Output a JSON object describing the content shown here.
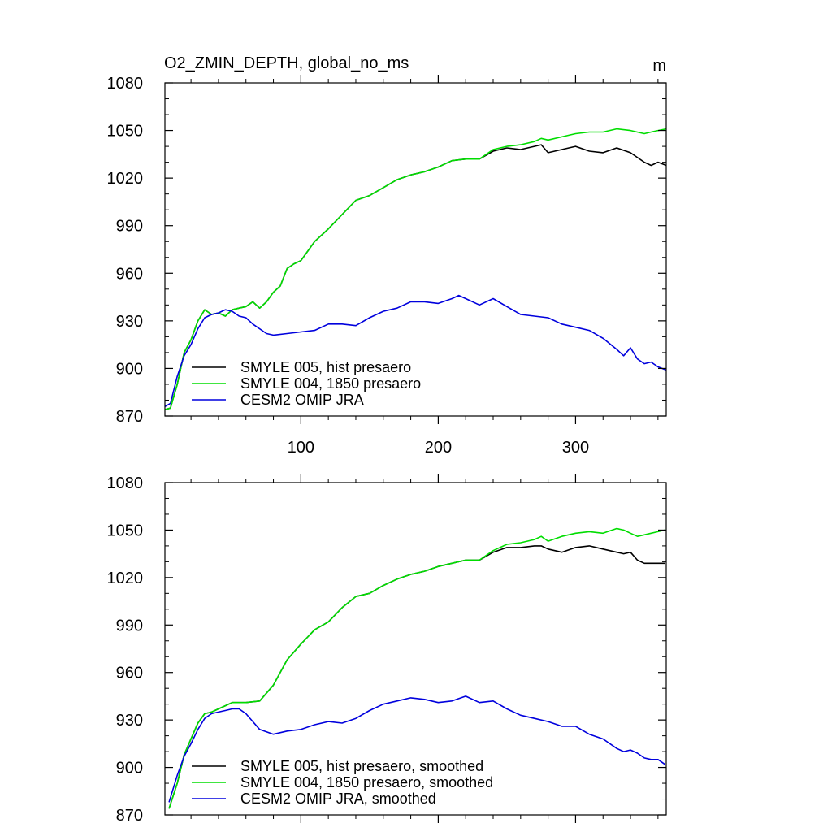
{
  "chart_data": [
    {
      "type": "line",
      "title": "O2_ZMIN_DEPTH, global_no_ms",
      "units": "m",
      "xlim": [
        1,
        366
      ],
      "ylim": [
        870,
        1080
      ],
      "xticks": [
        100,
        200,
        300
      ],
      "yticks": [
        870,
        900,
        930,
        960,
        990,
        1020,
        1050,
        1080
      ],
      "legend_position": "bottom-left",
      "series": [
        {
          "name": "SMYLE 005, hist presaero",
          "color": "#000000",
          "x": [
            1,
            5,
            10,
            15,
            20,
            25,
            30,
            35,
            40,
            45,
            50,
            55,
            60,
            65,
            70,
            75,
            80,
            85,
            90,
            95,
            100,
            110,
            120,
            130,
            140,
            150,
            160,
            170,
            180,
            190,
            200,
            210,
            220,
            230,
            240,
            250,
            260,
            270,
            275,
            280,
            290,
            300,
            310,
            320,
            330,
            340,
            350,
            355,
            360,
            366
          ],
          "y": [
            874,
            875,
            890,
            910,
            918,
            930,
            937,
            934,
            935,
            933,
            937,
            938,
            939,
            942,
            938,
            942,
            948,
            952,
            963,
            966,
            968,
            980,
            988,
            997,
            1006,
            1009,
            1014,
            1019,
            1022,
            1024,
            1027,
            1031,
            1032,
            1032,
            1037,
            1039,
            1038,
            1040,
            1041,
            1036,
            1038,
            1040,
            1037,
            1036,
            1039,
            1036,
            1030,
            1028,
            1030,
            1028
          ]
        },
        {
          "name": "SMYLE 004, 1850 presaero",
          "color": "#00dd00",
          "x": [
            1,
            5,
            10,
            15,
            20,
            25,
            30,
            35,
            40,
            45,
            50,
            55,
            60,
            65,
            70,
            75,
            80,
            85,
            90,
            95,
            100,
            110,
            120,
            130,
            140,
            150,
            160,
            170,
            180,
            190,
            200,
            210,
            220,
            230,
            240,
            250,
            260,
            270,
            275,
            280,
            290,
            300,
            310,
            320,
            330,
            340,
            350,
            355,
            360,
            366
          ],
          "y": [
            874,
            875,
            890,
            910,
            918,
            930,
            937,
            934,
            935,
            933,
            937,
            938,
            939,
            942,
            938,
            942,
            948,
            952,
            963,
            966,
            968,
            980,
            988,
            997,
            1006,
            1009,
            1014,
            1019,
            1022,
            1024,
            1027,
            1031,
            1032,
            1032,
            1038,
            1040,
            1041,
            1043,
            1045,
            1044,
            1046,
            1048,
            1049,
            1049,
            1051,
            1050,
            1048,
            1049,
            1050,
            1051
          ]
        },
        {
          "name": "CESM2 OMIP JRA",
          "color": "#0000dd",
          "x": [
            1,
            5,
            10,
            15,
            20,
            25,
            30,
            35,
            40,
            45,
            50,
            55,
            60,
            65,
            70,
            75,
            80,
            90,
            100,
            110,
            120,
            130,
            140,
            150,
            160,
            170,
            180,
            190,
            200,
            210,
            215,
            220,
            230,
            240,
            250,
            260,
            270,
            280,
            290,
            300,
            310,
            320,
            330,
            335,
            340,
            345,
            350,
            355,
            360,
            366
          ],
          "y": [
            876,
            878,
            895,
            908,
            915,
            925,
            932,
            934,
            935,
            937,
            936,
            933,
            932,
            928,
            925,
            922,
            921,
            922,
            923,
            924,
            928,
            928,
            927,
            932,
            936,
            938,
            942,
            942,
            941,
            944,
            946,
            944,
            940,
            944,
            939,
            934,
            933,
            932,
            928,
            926,
            924,
            919,
            912,
            908,
            913,
            906,
            903,
            904,
            901,
            899
          ]
        }
      ]
    },
    {
      "type": "line",
      "title": "",
      "xlim": [
        1,
        366
      ],
      "ylim": [
        870,
        1080
      ],
      "xticks": [
        100,
        200,
        300
      ],
      "yticks": [
        870,
        900,
        930,
        960,
        990,
        1020,
        1050,
        1080
      ],
      "legend_position": "bottom-left",
      "series": [
        {
          "name": "SMYLE 005, hist presaero, smoothed",
          "color": "#000000",
          "x": [
            4,
            10,
            15,
            20,
            25,
            30,
            35,
            40,
            45,
            50,
            60,
            70,
            80,
            90,
            100,
            110,
            120,
            130,
            140,
            150,
            160,
            170,
            180,
            190,
            200,
            210,
            220,
            230,
            240,
            250,
            260,
            270,
            275,
            280,
            290,
            300,
            310,
            320,
            330,
            335,
            340,
            345,
            350,
            355,
            360,
            365
          ],
          "y": [
            874,
            890,
            908,
            918,
            928,
            934,
            935,
            937,
            939,
            941,
            941,
            942,
            952,
            968,
            978,
            987,
            992,
            1001,
            1008,
            1010,
            1015,
            1019,
            1022,
            1024,
            1027,
            1029,
            1031,
            1031,
            1036,
            1039,
            1039,
            1040,
            1040,
            1038,
            1036,
            1039,
            1040,
            1038,
            1036,
            1035,
            1036,
            1031,
            1029,
            1029,
            1029,
            1029
          ]
        },
        {
          "name": "SMYLE 004, 1850 presaero, smoothed",
          "color": "#00dd00",
          "x": [
            4,
            10,
            15,
            20,
            25,
            30,
            35,
            40,
            45,
            50,
            60,
            70,
            80,
            90,
            100,
            110,
            120,
            130,
            140,
            150,
            160,
            170,
            180,
            190,
            200,
            210,
            220,
            230,
            240,
            250,
            260,
            270,
            275,
            280,
            290,
            300,
            310,
            320,
            330,
            335,
            340,
            345,
            350,
            355,
            360,
            365
          ],
          "y": [
            874,
            890,
            908,
            918,
            928,
            934,
            935,
            937,
            939,
            941,
            941,
            942,
            952,
            968,
            978,
            987,
            992,
            1001,
            1008,
            1010,
            1015,
            1019,
            1022,
            1024,
            1027,
            1029,
            1031,
            1031,
            1037,
            1041,
            1042,
            1044,
            1046,
            1043,
            1046,
            1048,
            1049,
            1048,
            1051,
            1050,
            1048,
            1046,
            1047,
            1048,
            1049,
            1050
          ]
        },
        {
          "name": "CESM2 OMIP JRA, smoothed",
          "color": "#0000dd",
          "x": [
            4,
            10,
            15,
            20,
            25,
            30,
            35,
            40,
            45,
            50,
            55,
            60,
            65,
            70,
            80,
            90,
            100,
            110,
            120,
            130,
            140,
            150,
            160,
            170,
            180,
            190,
            200,
            210,
            220,
            230,
            240,
            250,
            260,
            270,
            280,
            290,
            300,
            310,
            320,
            330,
            335,
            340,
            345,
            350,
            355,
            360,
            365
          ],
          "y": [
            878,
            895,
            907,
            915,
            924,
            931,
            934,
            935,
            936,
            937,
            937,
            934,
            929,
            924,
            921,
            923,
            924,
            927,
            929,
            928,
            931,
            936,
            940,
            942,
            944,
            943,
            941,
            942,
            945,
            941,
            942,
            937,
            933,
            931,
            929,
            926,
            926,
            921,
            918,
            912,
            910,
            911,
            909,
            906,
            905,
            905,
            902
          ]
        }
      ]
    }
  ]
}
